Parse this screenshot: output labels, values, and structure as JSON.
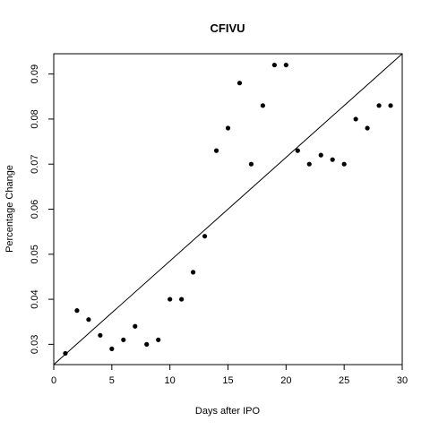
{
  "chart_data": {
    "type": "scatter",
    "title": "CFIVU",
    "xlabel": "Days after IPO",
    "ylabel": "Percentage Change",
    "xlim": [
      0,
      30
    ],
    "ylim": [
      0.0255,
      0.0945
    ],
    "xticks": [
      0,
      5,
      10,
      15,
      20,
      25,
      30
    ],
    "yticks": [
      0.03,
      0.04,
      0.05,
      0.06,
      0.07,
      0.08,
      0.09
    ],
    "x": [
      1,
      2,
      3,
      4,
      5,
      6,
      7,
      8,
      9,
      10,
      11,
      12,
      13,
      14,
      15,
      16,
      17,
      18,
      19,
      20,
      21,
      22,
      23,
      24,
      25,
      26,
      27,
      28,
      29
    ],
    "y": [
      0.028,
      0.0375,
      0.0355,
      0.032,
      0.029,
      0.031,
      0.034,
      0.03,
      0.031,
      0.04,
      0.04,
      0.046,
      0.054,
      0.073,
      0.078,
      0.088,
      0.07,
      0.083,
      0.092,
      0.092,
      0.073,
      0.07,
      0.072,
      0.071,
      0.07,
      0.08,
      0.078,
      0.083,
      0.083
    ],
    "fit_line": {
      "x": [
        0,
        30
      ],
      "y": [
        0.0255,
        0.0945
      ]
    },
    "grid": false,
    "legend": "none",
    "point_color": "#000000",
    "line_color": "#000000"
  }
}
